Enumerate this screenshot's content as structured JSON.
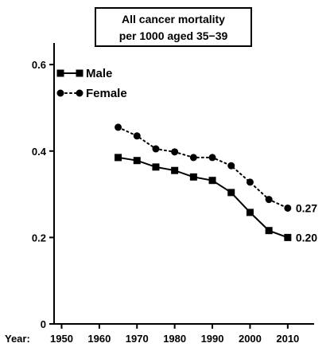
{
  "chart_data": {
    "type": "line",
    "title_lines": [
      "All cancer mortality",
      "per 1000 aged 35−39"
    ],
    "x_axis_prefix": "Year:",
    "x": [
      1965,
      1970,
      1975,
      1980,
      1985,
      1990,
      1995,
      2000,
      2005,
      2010
    ],
    "xticks": [
      1950,
      1960,
      1970,
      1980,
      1990,
      2000,
      2010
    ],
    "xlim": [
      1948,
      2017
    ],
    "yticks": [
      0,
      0.2,
      0.4,
      0.6
    ],
    "ylim": [
      0,
      0.65
    ],
    "legend_position": "top-left",
    "series": [
      {
        "name": "Male",
        "marker": "square",
        "line_style": "solid",
        "color": "#000000",
        "values": [
          0.385,
          0.378,
          0.363,
          0.355,
          0.34,
          0.332,
          0.304,
          0.258,
          0.216,
          0.2
        ],
        "end_label": "0.20"
      },
      {
        "name": "Female",
        "marker": "circle",
        "line_style": "dotted",
        "color": "#000000",
        "values": [
          0.455,
          0.435,
          0.405,
          0.398,
          0.385,
          0.385,
          0.366,
          0.328,
          0.288,
          0.268
        ],
        "end_label": "0.27"
      }
    ]
  }
}
